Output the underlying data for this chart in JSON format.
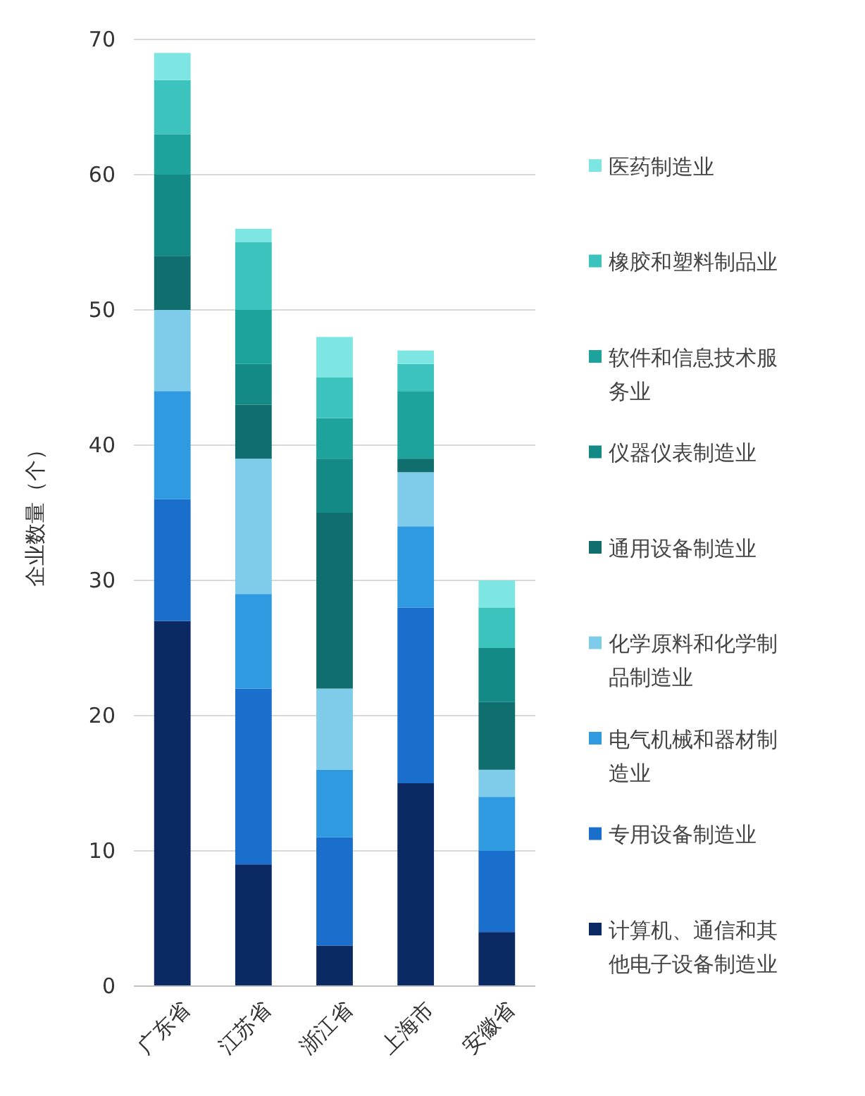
{
  "chart_data": {
    "type": "bar",
    "stacked": true,
    "ylabel": "企业数量（个）",
    "categories": [
      "广东省",
      "江苏省",
      "浙江省",
      "上海市",
      "安徽省"
    ],
    "series": [
      {
        "name": "计算机、通信和其他电子设备制造业",
        "color": "#0b2a63",
        "values": [
          27,
          9,
          3,
          15,
          4
        ]
      },
      {
        "name": "专用设备制造业",
        "color": "#1a6fcc",
        "values": [
          9,
          13,
          8,
          13,
          6
        ]
      },
      {
        "name": "电气机械和器材制造业",
        "color": "#2f9ae0",
        "values": [
          8,
          7,
          5,
          6,
          4
        ]
      },
      {
        "name": "化学原料和化学制品制造业",
        "color": "#7fcbea",
        "values": [
          6,
          10,
          6,
          4,
          2
        ]
      },
      {
        "name": "通用设备制造业",
        "color": "#116e6e",
        "values": [
          4,
          4,
          13,
          1,
          5
        ]
      },
      {
        "name": "仪器仪表制造业",
        "color": "#138a86",
        "values": [
          6,
          3,
          4,
          0,
          4
        ]
      },
      {
        "name": "软件和信息技术服务业",
        "color": "#1ea39c",
        "values": [
          3,
          4,
          3,
          5,
          0
        ]
      },
      {
        "name": "橡胶和塑料制品业",
        "color": "#3cc3bd",
        "values": [
          4,
          5,
          3,
          2,
          3
        ]
      },
      {
        "name": "医药制造业",
        "color": "#7ee6e2",
        "values": [
          2,
          1,
          3,
          1,
          2
        ]
      }
    ],
    "ylim": [
      0,
      70
    ],
    "yticks": [
      0,
      10,
      20,
      30,
      40,
      50,
      60,
      70
    ],
    "grid": "y",
    "legend": "right"
  }
}
